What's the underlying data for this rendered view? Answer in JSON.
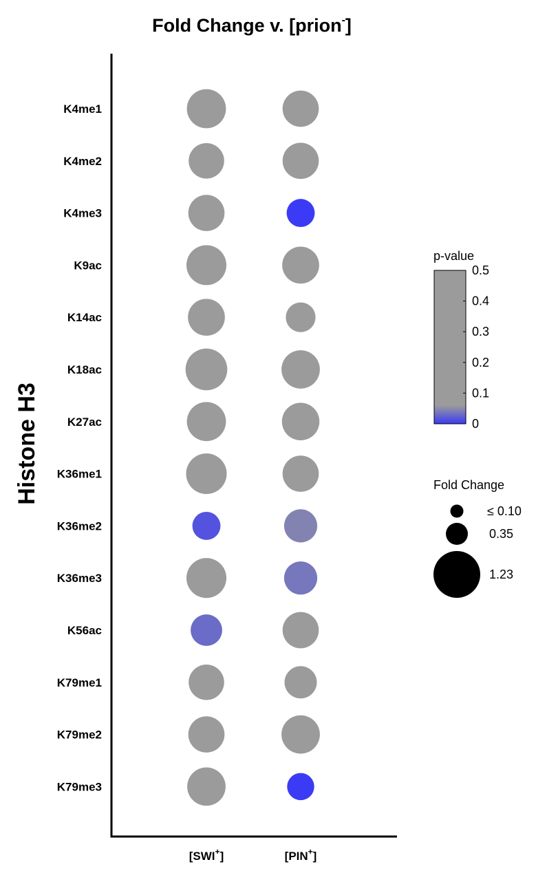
{
  "chart_data": {
    "type": "bubble-grid",
    "title": "Fold Change v. [prion",
    "title_superscript": "-",
    "title_suffix": "]",
    "ylabel": "Histone H3",
    "rows": [
      "K4me1",
      "K4me2",
      "K4me3",
      "K9ac",
      "K14ac",
      "K18ac",
      "K27ac",
      "K36me1",
      "K36me2",
      "K36me3",
      "K56ac",
      "K79me1",
      "K79me2",
      "K79me3"
    ],
    "columns": [
      {
        "label": "[SWI",
        "sup": "+",
        "suffix": "]"
      },
      {
        "label": "[PIN",
        "sup": "+",
        "suffix": "]"
      }
    ],
    "series": [
      {
        "column": "[SWI+]",
        "fold_change": [
          1.14,
          0.94,
          0.98,
          1.19,
          1.02,
          1.3,
          1.14,
          1.23,
          0.59,
          1.19,
          0.74,
          0.94,
          0.98,
          1.1
        ],
        "p_value": [
          0.5,
          0.5,
          0.5,
          0.5,
          0.5,
          0.5,
          0.5,
          0.5,
          0.02,
          0.5,
          0.04,
          0.5,
          0.5,
          0.5
        ]
      },
      {
        "column": "[PIN+]",
        "fold_change": [
          0.98,
          0.98,
          0.59,
          1.02,
          0.66,
          1.1,
          1.05,
          0.98,
          0.82,
          0.82,
          0.98,
          0.78,
          1.1,
          0.55
        ],
        "p_value": [
          0.5,
          0.5,
          0.0,
          0.5,
          0.5,
          0.5,
          0.5,
          0.5,
          0.06,
          0.05,
          0.5,
          0.5,
          0.5,
          0.0
        ]
      }
    ],
    "color_legend": {
      "title": "p-value",
      "ticks": [
        "0.5",
        "0.4",
        "0.3",
        "0.2",
        "0.1",
        "0"
      ],
      "range": [
        0,
        0.5
      ],
      "low_color": "#3b3bf5",
      "high_color": "#9b9b9b"
    },
    "size_legend": {
      "title": "Fold Change",
      "entries": [
        {
          "label": "≤  0.10",
          "value": 0.1
        },
        {
          "label": "0.35",
          "value": 0.35
        },
        {
          "label": "1.23",
          "value": 1.23
        }
      ]
    }
  }
}
